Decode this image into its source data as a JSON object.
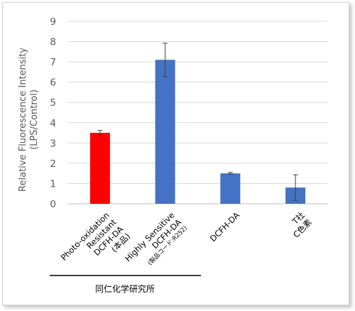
{
  "chart_data": {
    "type": "bar",
    "categories": [
      {
        "lines": [
          "Photo-oxidation",
          "Resistant",
          "DCFH-DA",
          "(本品)"
        ],
        "small": []
      },
      {
        "lines": [
          "Highly Sensitive",
          "DCFH-DA"
        ],
        "small": [
          "(製品コード:R252)"
        ]
      },
      {
        "lines": [
          "DCFH-DA"
        ],
        "small": []
      },
      {
        "lines": [
          "T社",
          "C色素"
        ],
        "small": []
      }
    ],
    "values": [
      3.5,
      7.1,
      1.5,
      0.8
    ],
    "errors": [
      0.12,
      0.82,
      0.05,
      0.63
    ],
    "colors": [
      "#ff0000",
      "#4472c4",
      "#4472c4",
      "#4472c4"
    ],
    "ylabel_lines": [
      "Relative Fluorescence Intensity",
      "(LPS/Control)"
    ],
    "ylim": [
      0,
      9
    ],
    "yticks": [
      "0",
      "1",
      "2",
      "3",
      "4",
      "5",
      "6",
      "7",
      "8",
      "9"
    ],
    "grid": true,
    "group_label": "同仁化学研究所",
    "gridline_color": "#d9d9d9",
    "axis_color": "#bfbfbf"
  }
}
